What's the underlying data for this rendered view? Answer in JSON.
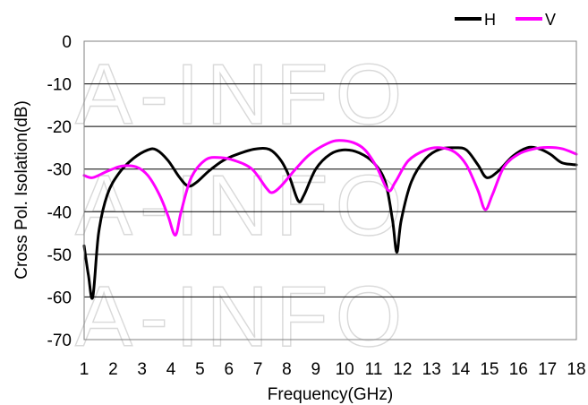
{
  "watermark": "A-INFO",
  "chart_data": {
    "type": "line",
    "xlabel": "Frequency(GHz)",
    "ylabel": "Cross Pol. Isolation(dB)",
    "xlim": [
      1,
      18
    ],
    "ylim": [
      -70,
      0
    ],
    "x_ticks": [
      "1",
      "2",
      "3",
      "4",
      "5",
      "6",
      "7",
      "8",
      "9",
      "10",
      "11",
      "12",
      "13",
      "14",
      "15",
      "16",
      "17",
      "18"
    ],
    "y_ticks": [
      "0",
      "-10",
      "-20",
      "-30",
      "-40",
      "-50",
      "-60",
      "-70"
    ],
    "y_tick_values": [
      0,
      -10,
      -20,
      -30,
      -40,
      -50,
      -60,
      -70
    ],
    "grid": "horizontal",
    "legend_position": "top-right",
    "series": [
      {
        "name": "H",
        "color": "#000000",
        "points": [
          [
            1,
            -48
          ],
          [
            1.15,
            -55
          ],
          [
            1.3,
            -60
          ],
          [
            1.5,
            -45
          ],
          [
            1.8,
            -36
          ],
          [
            2.2,
            -31
          ],
          [
            2.7,
            -27.5
          ],
          [
            3.2,
            -25.5
          ],
          [
            3.5,
            -25.5
          ],
          [
            3.9,
            -28
          ],
          [
            4.3,
            -32
          ],
          [
            4.6,
            -34
          ],
          [
            4.9,
            -33
          ],
          [
            5.3,
            -30.5
          ],
          [
            5.8,
            -28
          ],
          [
            6.3,
            -26.5
          ],
          [
            6.9,
            -25.3
          ],
          [
            7.4,
            -25.4
          ],
          [
            7.8,
            -28
          ],
          [
            8.1,
            -32
          ],
          [
            8.4,
            -37.5
          ],
          [
            8.6,
            -36
          ],
          [
            9,
            -30
          ],
          [
            9.5,
            -26.5
          ],
          [
            10,
            -25.5
          ],
          [
            10.5,
            -26.2
          ],
          [
            11,
            -28.5
          ],
          [
            11.4,
            -33
          ],
          [
            11.65,
            -42
          ],
          [
            11.8,
            -49.5
          ],
          [
            11.95,
            -42
          ],
          [
            12.3,
            -33
          ],
          [
            12.8,
            -27.5
          ],
          [
            13.3,
            -25.3
          ],
          [
            13.8,
            -25
          ],
          [
            14.2,
            -25.5
          ],
          [
            14.6,
            -29
          ],
          [
            14.9,
            -32
          ],
          [
            15.3,
            -30.5
          ],
          [
            15.8,
            -27
          ],
          [
            16.3,
            -25
          ],
          [
            16.7,
            -25.2
          ],
          [
            17.1,
            -26.5
          ],
          [
            17.5,
            -28.5
          ],
          [
            18,
            -29
          ]
        ]
      },
      {
        "name": "V",
        "color": "#ff00ff",
        "points": [
          [
            1,
            -31.5
          ],
          [
            1.3,
            -32
          ],
          [
            1.8,
            -30.5
          ],
          [
            2.3,
            -29.3
          ],
          [
            2.8,
            -29.5
          ],
          [
            3.2,
            -31.5
          ],
          [
            3.6,
            -36
          ],
          [
            3.9,
            -41
          ],
          [
            4.15,
            -45.5
          ],
          [
            4.35,
            -40
          ],
          [
            4.7,
            -32
          ],
          [
            5.2,
            -27.8
          ],
          [
            5.7,
            -27.3
          ],
          [
            6.2,
            -28
          ],
          [
            6.8,
            -30
          ],
          [
            7.3,
            -34.5
          ],
          [
            7.5,
            -35.5
          ],
          [
            7.8,
            -34
          ],
          [
            8.3,
            -30
          ],
          [
            8.8,
            -26.5
          ],
          [
            9.4,
            -24
          ],
          [
            9.8,
            -23.3
          ],
          [
            10.3,
            -23.8
          ],
          [
            10.7,
            -25.5
          ],
          [
            11.1,
            -29.5
          ],
          [
            11.5,
            -35
          ],
          [
            11.75,
            -33
          ],
          [
            12.2,
            -28
          ],
          [
            12.8,
            -25.5
          ],
          [
            13.3,
            -25
          ],
          [
            13.8,
            -26
          ],
          [
            14.2,
            -29
          ],
          [
            14.6,
            -35
          ],
          [
            14.85,
            -39.5
          ],
          [
            15.1,
            -36
          ],
          [
            15.5,
            -29.5
          ],
          [
            16,
            -26.5
          ],
          [
            16.5,
            -25.3
          ],
          [
            17,
            -24.9
          ],
          [
            17.5,
            -25.2
          ],
          [
            18,
            -26.5
          ]
        ]
      }
    ]
  }
}
